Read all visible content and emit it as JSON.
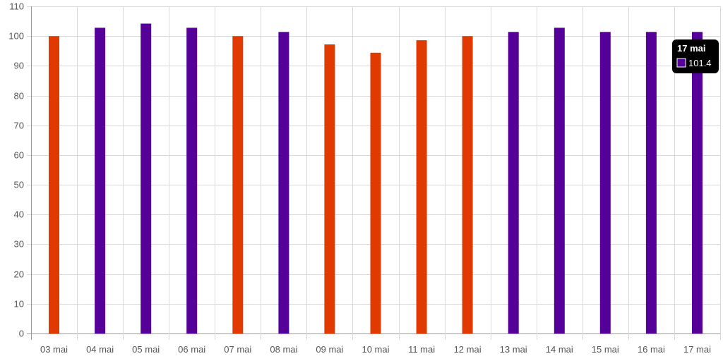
{
  "chart_data": {
    "type": "bar",
    "title": "",
    "xlabel": "",
    "ylabel": "",
    "ylim": [
      0,
      110
    ],
    "y_ticks": [
      0,
      10,
      20,
      30,
      40,
      50,
      60,
      70,
      80,
      90,
      100,
      110
    ],
    "grid": true,
    "categories": [
      "03 mai",
      "04 mai",
      "05 mai",
      "06 mai",
      "07 mai",
      "08 mai",
      "09 mai",
      "10 mai",
      "11 mai",
      "12 mai",
      "13 mai",
      "14 mai",
      "15 mai",
      "16 mai",
      "17 mai"
    ],
    "values": [
      100,
      102.8,
      104.2,
      102.8,
      100,
      101.4,
      97.2,
      94.4,
      98.6,
      100,
      101.4,
      102.8,
      101.4,
      101.4,
      101.4
    ],
    "bar_colors": [
      "#e03a00",
      "#56009a",
      "#56009a",
      "#56009a",
      "#e03a00",
      "#56009a",
      "#e03a00",
      "#e03a00",
      "#e03a00",
      "#e03a00",
      "#56009a",
      "#56009a",
      "#56009a",
      "#56009a",
      "#56009a"
    ],
    "colors": {
      "above_baseline": "#56009a",
      "at_or_below_baseline": "#e03a00",
      "grid": "#d9d9d9",
      "axis": "#999999",
      "tooltip_bg": "#000000",
      "tooltip_text": "#ffffff",
      "tooltip_swatch_border": "#ffffff"
    },
    "tooltip": {
      "visible": true,
      "category_index": 14,
      "title": "17 mai",
      "value_text": "101.4"
    }
  }
}
